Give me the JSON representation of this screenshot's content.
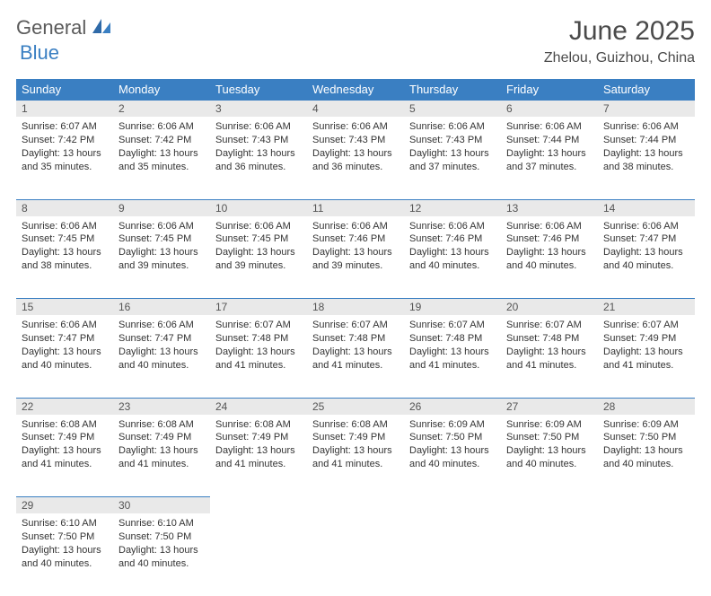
{
  "logo": {
    "text1": "General",
    "text2": "Blue"
  },
  "title": {
    "month": "June 2025",
    "location": "Zhelou, Guizhou, China"
  },
  "colors": {
    "header_bg": "#3a7fc2",
    "header_fg": "#ffffff",
    "daynum_bg": "#e9e9e9",
    "text": "#333333",
    "logo_gray": "#5a5a5a",
    "logo_blue": "#3a7fc2"
  },
  "daysOfWeek": [
    "Sunday",
    "Monday",
    "Tuesday",
    "Wednesday",
    "Thursday",
    "Friday",
    "Saturday"
  ],
  "weeks": [
    [
      {
        "n": "1",
        "sr": "6:07 AM",
        "ss": "7:42 PM",
        "dl": "13 hours and 35 minutes."
      },
      {
        "n": "2",
        "sr": "6:06 AM",
        "ss": "7:42 PM",
        "dl": "13 hours and 35 minutes."
      },
      {
        "n": "3",
        "sr": "6:06 AM",
        "ss": "7:43 PM",
        "dl": "13 hours and 36 minutes."
      },
      {
        "n": "4",
        "sr": "6:06 AM",
        "ss": "7:43 PM",
        "dl": "13 hours and 36 minutes."
      },
      {
        "n": "5",
        "sr": "6:06 AM",
        "ss": "7:43 PM",
        "dl": "13 hours and 37 minutes."
      },
      {
        "n": "6",
        "sr": "6:06 AM",
        "ss": "7:44 PM",
        "dl": "13 hours and 37 minutes."
      },
      {
        "n": "7",
        "sr": "6:06 AM",
        "ss": "7:44 PM",
        "dl": "13 hours and 38 minutes."
      }
    ],
    [
      {
        "n": "8",
        "sr": "6:06 AM",
        "ss": "7:45 PM",
        "dl": "13 hours and 38 minutes."
      },
      {
        "n": "9",
        "sr": "6:06 AM",
        "ss": "7:45 PM",
        "dl": "13 hours and 39 minutes."
      },
      {
        "n": "10",
        "sr": "6:06 AM",
        "ss": "7:45 PM",
        "dl": "13 hours and 39 minutes."
      },
      {
        "n": "11",
        "sr": "6:06 AM",
        "ss": "7:46 PM",
        "dl": "13 hours and 39 minutes."
      },
      {
        "n": "12",
        "sr": "6:06 AM",
        "ss": "7:46 PM",
        "dl": "13 hours and 40 minutes."
      },
      {
        "n": "13",
        "sr": "6:06 AM",
        "ss": "7:46 PM",
        "dl": "13 hours and 40 minutes."
      },
      {
        "n": "14",
        "sr": "6:06 AM",
        "ss": "7:47 PM",
        "dl": "13 hours and 40 minutes."
      }
    ],
    [
      {
        "n": "15",
        "sr": "6:06 AM",
        "ss": "7:47 PM",
        "dl": "13 hours and 40 minutes."
      },
      {
        "n": "16",
        "sr": "6:06 AM",
        "ss": "7:47 PM",
        "dl": "13 hours and 40 minutes."
      },
      {
        "n": "17",
        "sr": "6:07 AM",
        "ss": "7:48 PM",
        "dl": "13 hours and 41 minutes."
      },
      {
        "n": "18",
        "sr": "6:07 AM",
        "ss": "7:48 PM",
        "dl": "13 hours and 41 minutes."
      },
      {
        "n": "19",
        "sr": "6:07 AM",
        "ss": "7:48 PM",
        "dl": "13 hours and 41 minutes."
      },
      {
        "n": "20",
        "sr": "6:07 AM",
        "ss": "7:48 PM",
        "dl": "13 hours and 41 minutes."
      },
      {
        "n": "21",
        "sr": "6:07 AM",
        "ss": "7:49 PM",
        "dl": "13 hours and 41 minutes."
      }
    ],
    [
      {
        "n": "22",
        "sr": "6:08 AM",
        "ss": "7:49 PM",
        "dl": "13 hours and 41 minutes."
      },
      {
        "n": "23",
        "sr": "6:08 AM",
        "ss": "7:49 PM",
        "dl": "13 hours and 41 minutes."
      },
      {
        "n": "24",
        "sr": "6:08 AM",
        "ss": "7:49 PM",
        "dl": "13 hours and 41 minutes."
      },
      {
        "n": "25",
        "sr": "6:08 AM",
        "ss": "7:49 PM",
        "dl": "13 hours and 41 minutes."
      },
      {
        "n": "26",
        "sr": "6:09 AM",
        "ss": "7:50 PM",
        "dl": "13 hours and 40 minutes."
      },
      {
        "n": "27",
        "sr": "6:09 AM",
        "ss": "7:50 PM",
        "dl": "13 hours and 40 minutes."
      },
      {
        "n": "28",
        "sr": "6:09 AM",
        "ss": "7:50 PM",
        "dl": "13 hours and 40 minutes."
      }
    ],
    [
      {
        "n": "29",
        "sr": "6:10 AM",
        "ss": "7:50 PM",
        "dl": "13 hours and 40 minutes."
      },
      {
        "n": "30",
        "sr": "6:10 AM",
        "ss": "7:50 PM",
        "dl": "13 hours and 40 minutes."
      },
      null,
      null,
      null,
      null,
      null
    ]
  ],
  "labels": {
    "sunrise": "Sunrise:",
    "sunset": "Sunset:",
    "daylight": "Daylight:"
  }
}
